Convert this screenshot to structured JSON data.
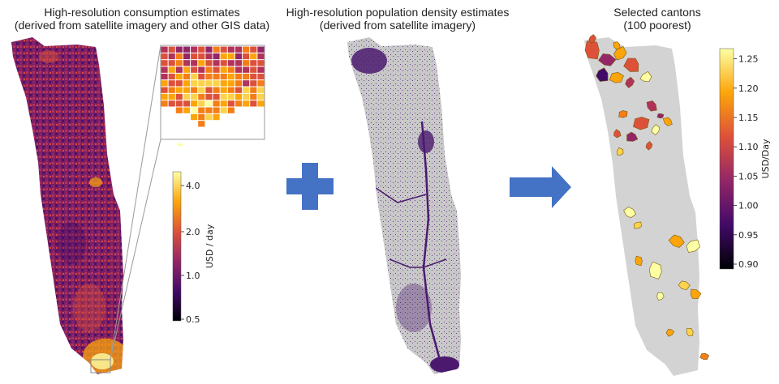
{
  "panels": {
    "consumption": {
      "title_line1": "High-resolution consumption estimates",
      "title_line2": "(derived from satellite imagery and other GIS data)",
      "colorbar": {
        "label": "USD / day",
        "ticks": [
          "0.5",
          "1.0",
          "2.0",
          "4.0"
        ],
        "colormap": [
          "#000004",
          "#420a68",
          "#932667",
          "#dd513a",
          "#fca50a",
          "#fcffa4"
        ]
      }
    },
    "population": {
      "title_line1": "High-resolution population density estimates",
      "title_line2": "(derived from satellite imagery)",
      "background_color": "#c8c8c8",
      "density_color": "#4b1a6e"
    },
    "cantons": {
      "title_line1": "Selected cantons",
      "title_line2": "(100 poorest)",
      "background_color": "#d3d3d3",
      "colorbar": {
        "label": "USD/Day",
        "ticks": [
          "0.90",
          "0.95",
          "1.00",
          "1.05",
          "1.10",
          "1.15",
          "1.20",
          "1.25"
        ],
        "colormap": [
          "#000004",
          "#420a68",
          "#932667",
          "#dd513a",
          "#fca50a",
          "#fcffa4"
        ]
      }
    }
  },
  "operators": {
    "plus": {
      "icon": "plus-icon",
      "color": "#4472c4"
    },
    "arrow": {
      "icon": "arrow-right-icon",
      "color": "#4472c4"
    }
  }
}
